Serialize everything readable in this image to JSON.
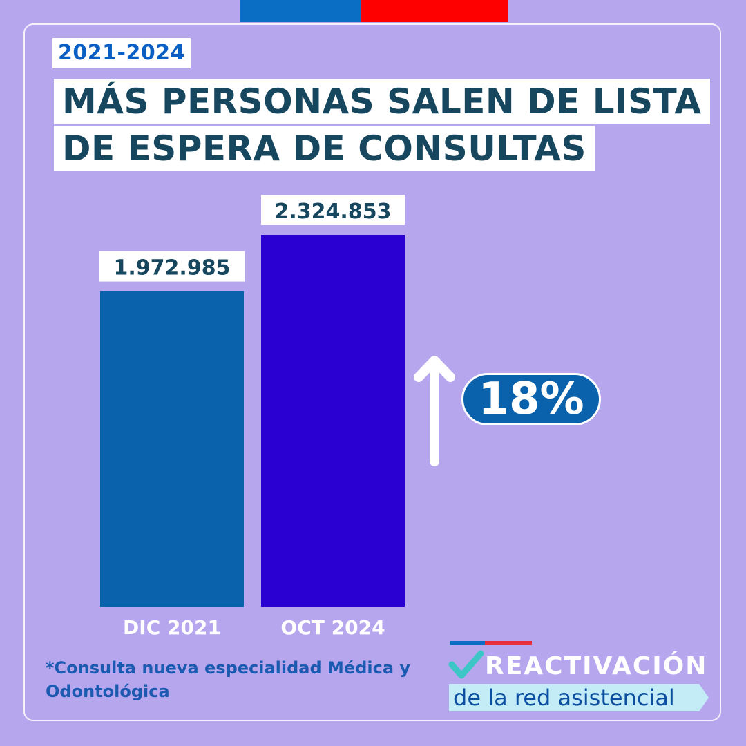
{
  "header": {
    "year_range": "2021-2024",
    "title_line_1": "MÁS PERSONAS SALEN DE LISTA",
    "title_line_2": "DE ESPERA DE CONSULTAS"
  },
  "chart_data": {
    "type": "bar",
    "categories": [
      "DIC 2021",
      "OCT 2024"
    ],
    "values": [
      1972985,
      2324853
    ],
    "value_labels": [
      "1.972.985",
      "2.324.853"
    ],
    "bar_colors": [
      "#0a62ac",
      "#2a00d2"
    ],
    "annotation": "18%"
  },
  "footnote": "*Consulta nueva especialidad Médica y Odontológica",
  "logo": {
    "word": "REACTIVACIÓN",
    "subtitle": "de la red asistencial"
  },
  "colors": {
    "background": "#b6a6ee",
    "title_text": "#16475e",
    "accent_blue": "#0a6ec4",
    "accent_red": "#ff0000",
    "check_teal": "#3ec6c6"
  }
}
